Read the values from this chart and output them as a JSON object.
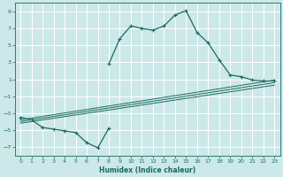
{
  "xlabel": "Humidex (Indice chaleur)",
  "background_color": "#cce8e8",
  "grid_color": "#b0d0d0",
  "line_color": "#1a6b60",
  "xlim": [
    -0.5,
    23.5
  ],
  "ylim": [
    -8,
    10
  ],
  "xticks": [
    0,
    1,
    2,
    3,
    4,
    5,
    6,
    7,
    8,
    9,
    10,
    11,
    12,
    13,
    14,
    15,
    16,
    17,
    18,
    19,
    20,
    21,
    22,
    23
  ],
  "yticks": [
    -7,
    -5,
    -3,
    -1,
    1,
    3,
    5,
    7,
    9
  ],
  "series": [
    [
      0,
      -3.5
    ],
    [
      1,
      -3.8
    ],
    [
      2,
      -4.7
    ],
    [
      3,
      -4.9
    ],
    [
      4,
      -5.1
    ],
    [
      5,
      -5.3
    ],
    [
      6,
      -6.5
    ],
    [
      7,
      -7.1
    ],
    [
      8,
      -4.8
    ],
    [
      8,
      2.8
    ],
    [
      9,
      5.8
    ],
    [
      10,
      7.3
    ],
    [
      11,
      7.0
    ],
    [
      12,
      6.8
    ],
    [
      13,
      7.3
    ],
    [
      14,
      8.6
    ],
    [
      15,
      9.1
    ],
    [
      16,
      6.5
    ],
    [
      17,
      5.3
    ],
    [
      18,
      3.3
    ],
    [
      19,
      1.5
    ],
    [
      20,
      1.3
    ],
    [
      21,
      0.9
    ],
    [
      22,
      0.8
    ],
    [
      23,
      0.8
    ]
  ],
  "trend_lines": [
    [
      [
        0,
        -3.8
      ],
      [
        23,
        0.9
      ]
    ],
    [
      [
        0,
        -4.0
      ],
      [
        23,
        0.6
      ]
    ],
    [
      [
        0,
        -4.2
      ],
      [
        23,
        0.3
      ]
    ]
  ]
}
